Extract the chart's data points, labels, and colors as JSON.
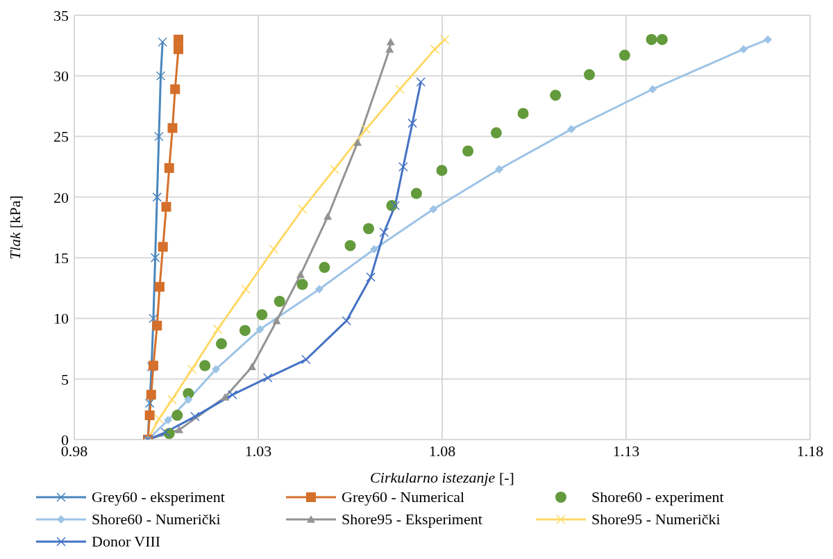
{
  "chart_data": {
    "type": "line",
    "xlabel": "Cirkularno istezanje [-]",
    "ylabel": "Tlak [kPa]",
    "xlim": [
      0.98,
      1.18
    ],
    "xticks": [
      {
        "value": 0.98,
        "label": "0.98"
      },
      {
        "value": 1.03,
        "label": "1.03"
      },
      {
        "value": 1.08,
        "label": "1.08"
      },
      {
        "value": 1.13,
        "label": "1.13"
      },
      {
        "value": 1.18,
        "label": "1.18"
      }
    ],
    "ylim": [
      0,
      35
    ],
    "yticks": [
      0,
      5,
      10,
      15,
      20,
      25,
      30,
      35
    ],
    "grid": true,
    "legend": "bottom",
    "series": [
      {
        "name": "Grey60 - eksperiment",
        "marker": "cross",
        "color": "#4a86bd",
        "x": [
          1.0,
          1.0005,
          1.001,
          1.0015,
          1.002,
          1.0025,
          1.003,
          1.0035,
          1.004
        ],
        "values": [
          0,
          3,
          6,
          10,
          15,
          20,
          25,
          30,
          32.8
        ]
      },
      {
        "name": "Grey60 - Numerical",
        "marker": "square",
        "color": "#d4702b",
        "x": [
          1.0,
          1.0005,
          1.0009,
          1.0015,
          1.0025,
          1.0032,
          1.0041,
          1.005,
          1.0058,
          1.0067,
          1.0074,
          1.0083,
          1.0083
        ],
        "values": [
          0,
          2.0,
          3.7,
          6.1,
          9.4,
          12.6,
          15.9,
          19.2,
          22.4,
          25.7,
          28.9,
          32.2,
          33
        ]
      },
      {
        "name": "Shore60 - experiment",
        "type": "scatter",
        "marker": "circle",
        "color": "#639a3c",
        "x": [
          1.0058,
          1.008,
          1.011,
          1.0155,
          1.02,
          1.0264,
          1.031,
          1.0358,
          1.042,
          1.048,
          1.055,
          1.06,
          1.0663,
          1.073,
          1.0799,
          1.087,
          1.0947,
          1.102,
          1.1108,
          1.12,
          1.1296,
          1.1369,
          1.1398
        ],
        "values": [
          0.5,
          2.0,
          3.8,
          6.1,
          7.9,
          9.0,
          10.3,
          11.4,
          12.8,
          14.2,
          16.0,
          17.4,
          19.3,
          20.3,
          22.2,
          23.8,
          25.3,
          26.9,
          28.4,
          30.1,
          31.7,
          33.0,
          33.0
        ]
      },
      {
        "name": "Shore60 - Numerički",
        "marker": "diamond",
        "color": "#9dc3e6",
        "x": [
          1.0,
          1.0055,
          1.011,
          1.0185,
          1.0305,
          1.0466,
          1.0615,
          1.0776,
          1.0955,
          1.1151,
          1.1372,
          1.1619,
          1.1685
        ],
        "values": [
          0,
          1.6,
          3.3,
          5.8,
          9.1,
          12.4,
          15.7,
          19.0,
          22.3,
          25.6,
          28.9,
          32.2,
          33.0
        ]
      },
      {
        "name": "Shore95 - Eksperiment",
        "marker": "triangle",
        "color": "#939393",
        "x": [
          1.0,
          1.0085,
          1.021,
          1.0283,
          1.035,
          1.0415,
          1.0489,
          1.057,
          1.0657,
          1.066
        ],
        "values": [
          0,
          0.8,
          3.5,
          6.0,
          9.8,
          13.6,
          18.4,
          24.5,
          32.2,
          32.8
        ]
      },
      {
        "name": "Shore95 - Numerički",
        "marker": "cross",
        "color": "#ffd966",
        "x": [
          1.0,
          1.003,
          1.0066,
          1.012,
          1.019,
          1.0266,
          1.0342,
          1.042,
          1.0507,
          1.0593,
          1.0685,
          1.078,
          1.0807
        ],
        "values": [
          0,
          1.7,
          3.3,
          5.8,
          9.1,
          12.4,
          15.7,
          19.0,
          22.3,
          25.6,
          28.9,
          32.2,
          33.0
        ]
      },
      {
        "name": "Donor VIII",
        "marker": "cross",
        "color": "#4472c4",
        "x": [
          1.0,
          1.0048,
          1.0128,
          1.023,
          1.0326,
          1.043,
          1.054,
          1.0606,
          1.0642,
          1.0672,
          1.0694,
          1.0719,
          1.0742
        ],
        "values": [
          0,
          0.6,
          1.9,
          3.7,
          5.1,
          6.6,
          9.8,
          13.4,
          17.1,
          19.3,
          22.5,
          26.1,
          29.5
        ]
      }
    ]
  }
}
